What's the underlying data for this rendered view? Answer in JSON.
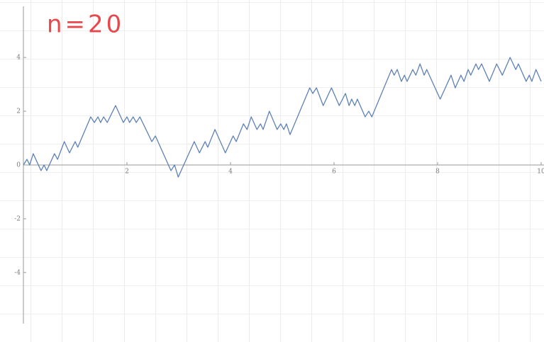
{
  "chart_data": {
    "type": "line",
    "annotation": "n=20",
    "series": [
      {
        "color": "#5e81b5",
        "x": [
          0,
          0.07,
          0.12,
          0.19,
          0.34,
          0.4,
          0.45,
          0.6,
          0.66,
          0.79,
          0.89,
          1.0,
          1.05,
          1.3,
          1.37,
          1.44,
          1.49,
          1.55,
          1.62,
          1.78,
          1.93,
          2.0,
          2.05,
          2.12,
          2.18,
          2.25,
          2.48,
          2.55,
          2.85,
          2.92,
          2.99,
          3.3,
          3.4,
          3.51,
          3.56,
          3.7,
          3.9,
          4.05,
          4.11,
          4.25,
          4.32,
          4.4,
          4.51,
          4.58,
          4.63,
          4.75,
          4.9,
          4.97,
          5.03,
          5.08,
          5.15,
          5.53,
          5.59,
          5.66,
          5.79,
          5.95,
          6.1,
          6.22,
          6.29,
          6.34,
          6.4,
          6.45,
          6.6,
          6.67,
          6.73,
          7.11,
          7.16,
          7.22,
          7.3,
          7.36,
          7.41,
          7.52,
          7.58,
          7.66,
          7.74,
          7.79,
          8.05,
          8.26,
          8.34,
          8.45,
          8.51,
          8.59,
          8.64,
          8.74,
          8.79,
          8.85,
          9.0,
          9.14,
          9.25,
          9.4,
          9.51,
          9.56,
          9.71,
          9.77,
          9.82,
          9.9,
          10
        ],
        "values": [
          0,
          0.21,
          0,
          0.42,
          -0.21,
          0,
          -0.21,
          0.42,
          0.21,
          0.87,
          0.45,
          0.87,
          0.66,
          1.79,
          1.58,
          1.79,
          1.58,
          1.79,
          1.58,
          2.21,
          1.58,
          1.79,
          1.58,
          1.79,
          1.58,
          1.79,
          0.87,
          1.08,
          -0.21,
          0,
          -0.45,
          0.87,
          0.45,
          0.87,
          0.66,
          1.32,
          0.45,
          1.08,
          0.87,
          1.53,
          1.32,
          1.79,
          1.32,
          1.53,
          1.32,
          2.0,
          1.32,
          1.53,
          1.32,
          1.53,
          1.13,
          2.87,
          2.66,
          2.87,
          2.21,
          2.87,
          2.21,
          2.66,
          2.21,
          2.45,
          2.21,
          2.45,
          1.79,
          2.0,
          1.79,
          3.55,
          3.34,
          3.55,
          3.11,
          3.34,
          3.11,
          3.55,
          3.34,
          3.76,
          3.34,
          3.55,
          2.45,
          3.34,
          2.87,
          3.34,
          3.11,
          3.55,
          3.34,
          3.76,
          3.55,
          3.76,
          3.11,
          3.76,
          3.34,
          4.0,
          3.55,
          3.76,
          3.11,
          3.34,
          3.11,
          3.55,
          3.11
        ]
      }
    ],
    "xlim": [
      0,
      10
    ],
    "ylim": [
      -5.9,
      5.9
    ],
    "xticks": [
      2,
      4,
      6,
      8,
      10
    ],
    "yticks": [
      -4,
      -2,
      0,
      2,
      4
    ]
  }
}
